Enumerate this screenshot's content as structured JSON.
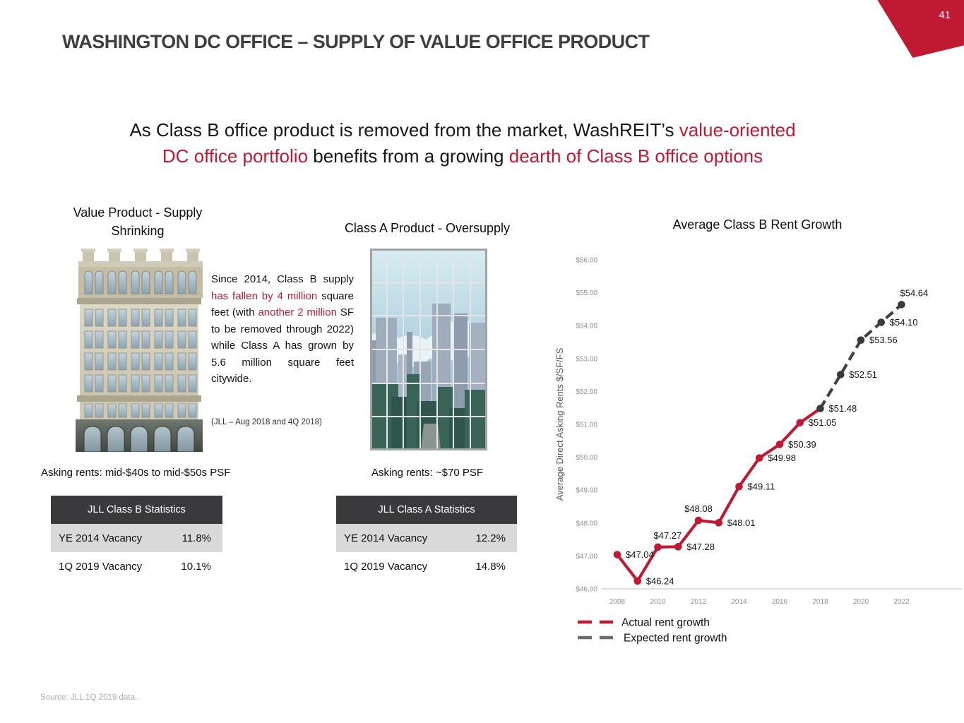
{
  "slide": {
    "page_number": "41",
    "title": "WASHINGTON DC OFFICE – SUPPLY OF VALUE OFFICE PRODUCT",
    "accent_color": "#C01A33",
    "subtitle_line1": [
      {
        "text": "As Class B office product is removed from the market, WashREIT’s ",
        "red": false
      },
      {
        "text": "value-oriented",
        "red": true
      }
    ],
    "subtitle_line2": [
      {
        "text": "DC office portfolio",
        "red": true
      },
      {
        "text": " benefits from a growing ",
        "red": false
      },
      {
        "text": "dearth of Class B office options",
        "red": true
      }
    ],
    "source": "Source: JLL 1Q 2019 data."
  },
  "left_column": {
    "heading_line1": "Value Product - Supply",
    "heading_line2": "Shrinking",
    "image": "classic-office-building-illustration",
    "paragraph": [
      {
        "text": "Since 2014, Class B supply ",
        "red": false
      },
      {
        "text": "has fallen by 4 million",
        "red": true
      },
      {
        "text": " square feet (with ",
        "red": false
      },
      {
        "text": "another 2 million",
        "red": true
      },
      {
        "text": " SF to be removed through 2022) while Class A has grown by 5.6 million square feet citywide.",
        "red": false
      }
    ],
    "citation": "(JLL – Aug 2018 and 4Q 2018)",
    "asking_rents": "Asking rents: mid-$40s to mid-$50s PSF",
    "table": {
      "header": "JLL Class B Statistics",
      "rows": [
        {
          "label": "YE 2014 Vacancy",
          "value": "11.8%"
        },
        {
          "label": "1Q 2019 Vacancy",
          "value": "10.1%"
        }
      ]
    }
  },
  "middle_column": {
    "heading": "Class A Product - Oversupply",
    "image": "glass-office-tower-illustration",
    "asking_rents": "Asking rents: ~$70 PSF",
    "table": {
      "header": "JLL Class A Statistics",
      "rows": [
        {
          "label": "YE 2014 Vacancy",
          "value": "12.2%"
        },
        {
          "label": "1Q 2019 Vacancy",
          "value": "14.8%"
        }
      ]
    }
  },
  "chart_data": {
    "type": "line",
    "title": "Average Class B Rent Growth",
    "ylabel": "Average  Direct Asking Rents $/SF/FS",
    "xlabel": "",
    "ylim": [
      46,
      56
    ],
    "grid": false,
    "legend_position": "bottom-left",
    "ytick_labels": [
      "$46.00",
      "$47.00",
      "$48.00",
      "$49.00",
      "$50.00",
      "$51.00",
      "$52.00",
      "$53.00",
      "$54.00",
      "$55.00",
      "$56.00"
    ],
    "xticks": [
      2008,
      2010,
      2012,
      2014,
      2016,
      2018,
      2020,
      2022
    ],
    "series": [
      {
        "name": "Actual rent growth",
        "color": "#C01A33",
        "line_style": "solid",
        "years": [
          2008,
          2009,
          2010,
          2011,
          2012,
          2013,
          2014,
          2015,
          2016,
          2017,
          2018
        ],
        "values": [
          47.04,
          46.24,
          47.27,
          47.28,
          48.08,
          48.01,
          49.11,
          49.98,
          50.39,
          51.05,
          51.48
        ]
      },
      {
        "name": "Expected rent growth",
        "color": "#414143",
        "line_style": "dashed",
        "years": [
          2018,
          2019,
          2020,
          2021,
          2022
        ],
        "values": [
          51.48,
          52.51,
          53.56,
          54.1,
          54.64
        ]
      }
    ],
    "point_labels": [
      {
        "year": 2008,
        "value": 47.04,
        "label": "$47.04"
      },
      {
        "year": 2009,
        "value": 46.24,
        "label": "$46.24"
      },
      {
        "year": 2010,
        "value": 47.27,
        "label": "$47.27"
      },
      {
        "year": 2011,
        "value": 47.28,
        "label": "$47.28"
      },
      {
        "year": 2012,
        "value": 48.08,
        "label": "$48.08"
      },
      {
        "year": 2013,
        "value": 48.01,
        "label": "$48.01"
      },
      {
        "year": 2014,
        "value": 49.11,
        "label": "$49.11"
      },
      {
        "year": 2015,
        "value": 49.98,
        "label": "$49.98"
      },
      {
        "year": 2016,
        "value": 50.39,
        "label": "$50.39"
      },
      {
        "year": 2017,
        "value": 51.05,
        "label": "$51.05"
      },
      {
        "year": 2018,
        "value": 51.48,
        "label": "$51.48"
      },
      {
        "year": 2019,
        "value": 52.51,
        "label": "$52.51"
      },
      {
        "year": 2020,
        "value": 53.56,
        "label": "$53.56"
      },
      {
        "year": 2021,
        "value": 54.1,
        "label": "$54.10"
      },
      {
        "year": 2022,
        "value": 54.64,
        "label": "$54.64"
      }
    ]
  }
}
